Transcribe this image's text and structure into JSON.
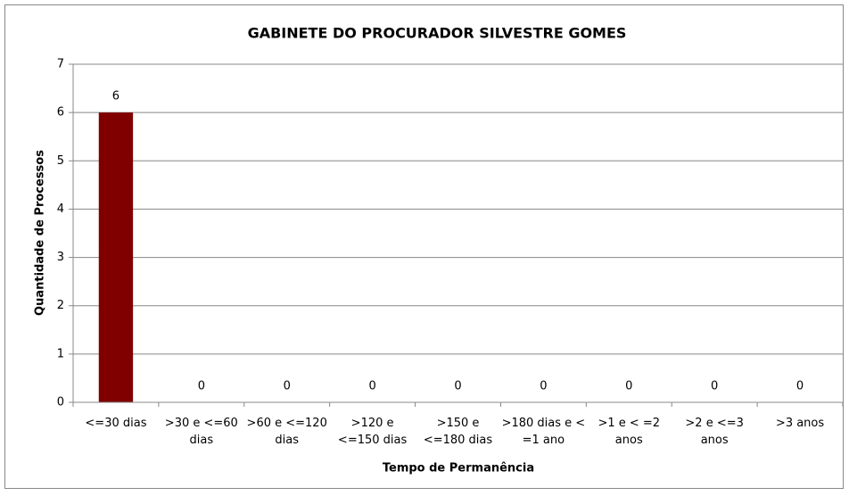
{
  "chart_data": {
    "type": "bar",
    "title": "GABINETE DO PROCURADOR SILVESTRE GOMES",
    "x_label": "Tempo de Permanência",
    "y_label": "Quantidade de Processos",
    "categories": [
      "<=30 dias",
      ">30 e <=60 dias",
      ">60 e <=120 dias",
      ">120 e <=150 dias",
      ">150 e <=180 dias",
      ">180 dias e < =1 ano",
      ">1 e < =2 anos",
      ">2 e <=3 anos",
      ">3 anos"
    ],
    "values": [
      6,
      0,
      0,
      0,
      0,
      0,
      0,
      0,
      0
    ],
    "color": "#800000",
    "ylim": [
      0,
      7
    ],
    "yticks": [
      0,
      1,
      2,
      3,
      4,
      5,
      6,
      7
    ],
    "grid": true,
    "data_labels": true
  }
}
